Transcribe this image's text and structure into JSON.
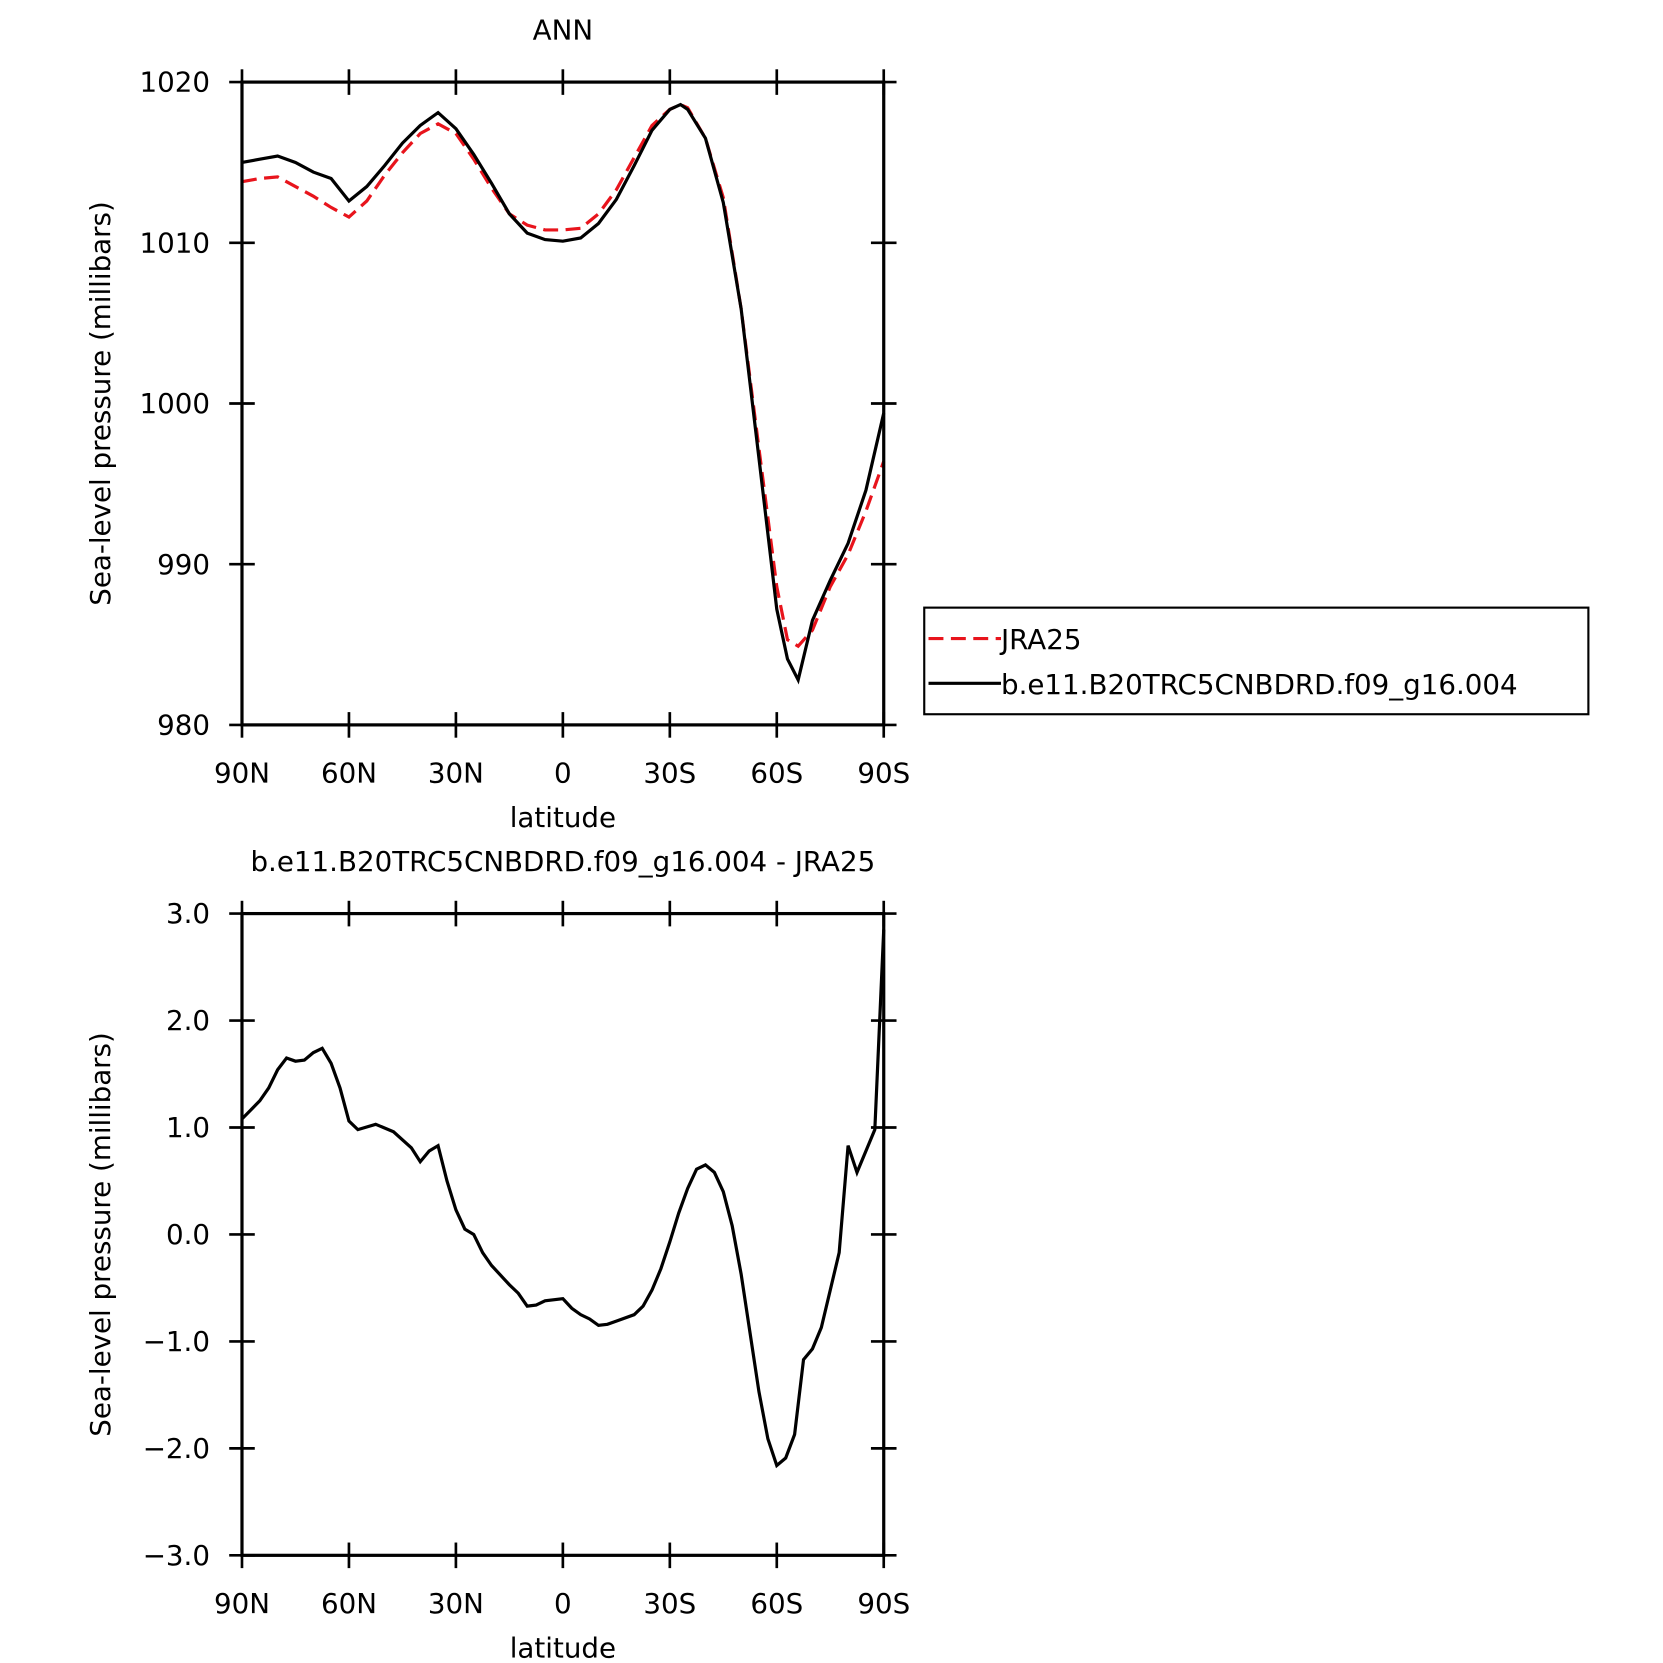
{
  "chart_data": [
    {
      "type": "line",
      "title": "ANN",
      "xlabel": "latitude",
      "ylabel": "Sea-level pressure (millibars)",
      "xlim": [
        90,
        -90
      ],
      "xticks": [
        {
          "value": 90,
          "label": "90N"
        },
        {
          "value": 60,
          "label": "60N"
        },
        {
          "value": 30,
          "label": "30N"
        },
        0,
        {
          "value": -30,
          "label": "30S"
        },
        {
          "value": -60,
          "label": "60S"
        },
        {
          "value": -90,
          "label": "90S"
        }
      ],
      "ylim": [
        980,
        1020
      ],
      "yticks": [
        980,
        990,
        1000,
        1010,
        1020
      ],
      "legend": "outside-right",
      "x": [
        90,
        85,
        80,
        75,
        70,
        65,
        60,
        55,
        50,
        45,
        40,
        35,
        30,
        25,
        20,
        15,
        10,
        5,
        0,
        -5,
        -10,
        -15,
        -20,
        -25,
        -30,
        -33,
        -35,
        -40,
        -45,
        -50,
        -55,
        -60,
        -63,
        -66,
        -70,
        -75,
        -80,
        -85,
        -90
      ],
      "series": [
        {
          "name": "JRA25",
          "color": "#e8141c",
          "line_style": "dashed",
          "values": [
            1013.8,
            1014.0,
            1014.1,
            1013.5,
            1012.9,
            1012.2,
            1011.6,
            1012.6,
            1014.2,
            1015.6,
            1016.8,
            1017.4,
            1016.8,
            1015.2,
            1013.4,
            1011.8,
            1011.1,
            1010.8,
            1010.8,
            1010.9,
            1011.8,
            1013.3,
            1015.3,
            1017.3,
            1018.3,
            1018.6,
            1018.4,
            1016.5,
            1012.8,
            1005.9,
            997.2,
            988.6,
            985.3,
            984.9,
            985.9,
            988.6,
            990.6,
            993.3,
            996.4
          ]
        },
        {
          "name": "b.e11.B20TRC5CNBDRD.f09_g16.004",
          "color": "#000000",
          "line_style": "solid",
          "values": [
            1015.0,
            1015.2,
            1015.4,
            1015.0,
            1014.4,
            1014.0,
            1012.6,
            1013.5,
            1014.8,
            1016.2,
            1017.3,
            1018.1,
            1017.1,
            1015.5,
            1013.7,
            1011.8,
            1010.6,
            1010.2,
            1010.1,
            1010.3,
            1011.2,
            1012.7,
            1014.8,
            1017.0,
            1018.3,
            1018.6,
            1018.3,
            1016.5,
            1012.5,
            1005.9,
            996.6,
            987.2,
            984.1,
            982.8,
            986.5,
            989.0,
            991.3,
            994.6,
            999.4
          ]
        }
      ]
    },
    {
      "type": "line",
      "title": "b.e11.B20TRC5CNBDRD.f09_g16.004 - JRA25",
      "xlabel": "latitude",
      "ylabel": "Sea-level pressure (millibars)",
      "xlim": [
        90,
        -90
      ],
      "xticks": [
        {
          "value": 90,
          "label": "90N"
        },
        {
          "value": 60,
          "label": "60N"
        },
        {
          "value": 30,
          "label": "30N"
        },
        0,
        {
          "value": -30,
          "label": "30S"
        },
        {
          "value": -60,
          "label": "60S"
        },
        {
          "value": -90,
          "label": "90S"
        }
      ],
      "ylim": [
        -3,
        3
      ],
      "yticks": [
        {
          "value": -3,
          "label": "−3.0"
        },
        {
          "value": -2,
          "label": "−2.0"
        },
        {
          "value": -1,
          "label": "−1.0"
        },
        {
          "value": 0,
          "label": "0.0"
        },
        {
          "value": 1,
          "label": "1.0"
        },
        {
          "value": 2,
          "label": "2.0"
        },
        {
          "value": 3,
          "label": "3.0"
        }
      ],
      "x": [
        90,
        85,
        82.5,
        80,
        77.5,
        75,
        72.5,
        70,
        67.5,
        65,
        62.5,
        60,
        57.5,
        52.5,
        47.5,
        42.5,
        40,
        37.5,
        35,
        32.5,
        30,
        27.5,
        25,
        22.5,
        20,
        15,
        12.5,
        10,
        7.5,
        5,
        0,
        -2.5,
        -5,
        -7.5,
        -10,
        -12.5,
        -15,
        -20,
        -22.5,
        -25,
        -27.5,
        -30,
        -32.5,
        -35,
        -37.5,
        -40,
        -42.5,
        -45,
        -47.5,
        -50,
        -52.5,
        -55,
        -57.5,
        -60,
        -62.5,
        -65,
        -67.5,
        -70,
        -72.5,
        -75,
        -77.5,
        -80,
        -82.5,
        -87.5,
        -90
      ],
      "series": [
        {
          "color": "#000000",
          "line_style": "solid",
          "values": [
            1.08,
            1.25,
            1.37,
            1.54,
            1.65,
            1.62,
            1.63,
            1.7,
            1.74,
            1.6,
            1.37,
            1.06,
            0.98,
            1.03,
            0.96,
            0.81,
            0.68,
            0.78,
            0.83,
            0.5,
            0.23,
            0.05,
            0.0,
            -0.17,
            -0.29,
            -0.47,
            -0.55,
            -0.67,
            -0.66,
            -0.62,
            -0.6,
            -0.69,
            -0.75,
            -0.79,
            -0.85,
            -0.84,
            -0.81,
            -0.75,
            -0.67,
            -0.52,
            -0.32,
            -0.07,
            0.2,
            0.43,
            0.61,
            0.65,
            0.58,
            0.4,
            0.08,
            -0.37,
            -0.92,
            -1.47,
            -1.91,
            -2.16,
            -2.09,
            -1.87,
            -1.17,
            -1.07,
            -0.87,
            -0.52,
            -0.17,
            0.83,
            0.58,
            0.98,
            2.85
          ]
        }
      ]
    }
  ]
}
